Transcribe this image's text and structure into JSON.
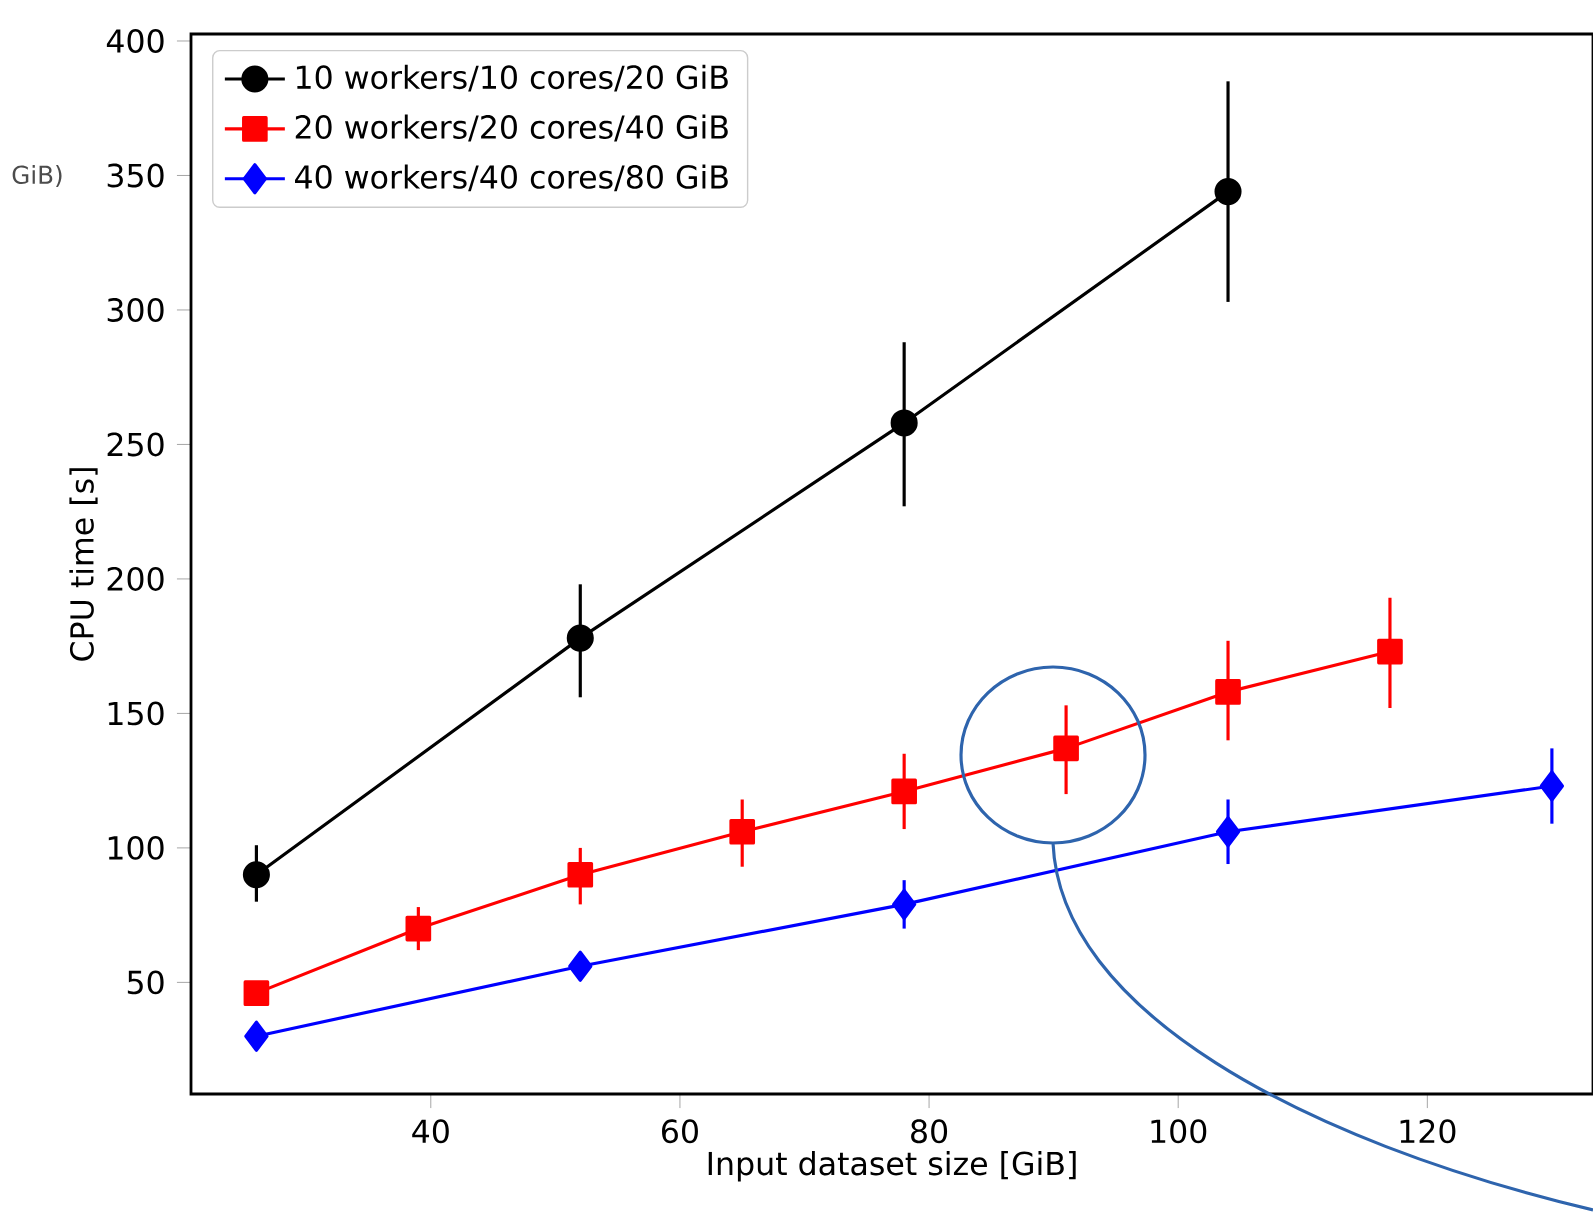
{
  "chart_data": {
    "type": "line",
    "xlabel": "Input dataset size [GiB]",
    "ylabel": "CPU time [s]",
    "xlim": [
      20.75,
      133.3
    ],
    "ylim": [
      8.5,
      402.6
    ],
    "xticks": [
      40,
      60,
      80,
      100,
      120
    ],
    "yticks": [
      50,
      100,
      150,
      200,
      250,
      300,
      350,
      400
    ],
    "legend": "top left",
    "annotations": [
      "GiB)"
    ],
    "series": [
      {
        "name": "10 workers/10 cores/20 GiB",
        "color": "#000000",
        "marker": "circle",
        "x": [
          26,
          52,
          78,
          104
        ],
        "values": [
          90,
          178,
          258,
          344
        ],
        "errors": [
          [
            80,
            101
          ],
          [
            156,
            198
          ],
          [
            227,
            288
          ],
          [
            303,
            385
          ]
        ]
      },
      {
        "name": "20 workers/20 cores/40 GiB",
        "color": "#ff0000",
        "marker": "square",
        "x": [
          26,
          39,
          52,
          65,
          78,
          91,
          104,
          117
        ],
        "values": [
          46,
          70,
          90,
          106,
          121,
          137,
          158,
          173
        ],
        "errors": [
          null,
          [
            62,
            78
          ],
          [
            79,
            100
          ],
          [
            93,
            118
          ],
          [
            107,
            135
          ],
          [
            120,
            153
          ],
          [
            140,
            177
          ],
          [
            152,
            193
          ]
        ]
      },
      {
        "name": "40 workers/40 cores/80 GiB",
        "color": "#0000ff",
        "marker": "diamond",
        "x": [
          26,
          52,
          78,
          104,
          130
        ],
        "values": [
          30,
          56,
          79,
          106,
          123
        ],
        "errors": [
          null,
          null,
          [
            70,
            88
          ],
          [
            94,
            118
          ],
          [
            109,
            137
          ]
        ]
      }
    ]
  }
}
